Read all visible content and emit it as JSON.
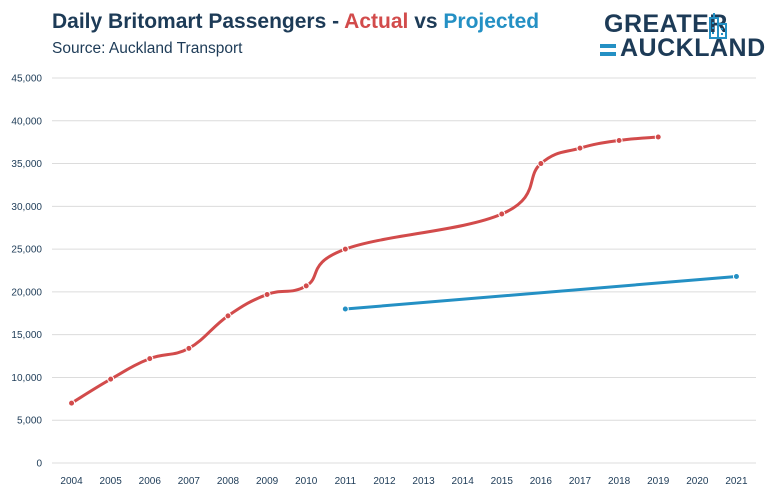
{
  "header": {
    "title_part1": "Daily Britomart Passengers - ",
    "title_actual": "Actual",
    "title_vs": " vs ",
    "title_projected": "Projected",
    "subtitle": "Source: Auckland Transport"
  },
  "logo": {
    "line1": "GREATER",
    "line2": "AUCKLAND",
    "icon": "city-building-icon",
    "color": "#1d3b57",
    "accent": "#2490c4"
  },
  "chart_data": {
    "type": "line",
    "title": "Daily Britomart Passengers - Actual vs Projected",
    "subtitle": "Source: Auckland Transport",
    "x": [
      2004,
      2005,
      2006,
      2007,
      2008,
      2009,
      2010,
      2011,
      2012,
      2013,
      2014,
      2015,
      2016,
      2017,
      2018,
      2019,
      2020,
      2021
    ],
    "x_tick_labels": [
      "2004",
      "2005",
      "2006",
      "2007",
      "2008",
      "2009",
      "2010",
      "2011",
      "2012",
      "2013",
      "2014",
      "2015",
      "2016",
      "2017",
      "2018",
      "2019",
      "2020",
      "2021"
    ],
    "ylim": [
      0,
      45000
    ],
    "y_ticks": [
      0,
      5000,
      10000,
      15000,
      20000,
      25000,
      30000,
      35000,
      40000,
      45000
    ],
    "y_tick_labels": [
      "0",
      "5,000",
      "10,000",
      "15,000",
      "20,000",
      "25,000",
      "30,000",
      "35,000",
      "40,000",
      "45,000"
    ],
    "grid": true,
    "xlabel": "",
    "ylabel": "",
    "series": [
      {
        "name": "Actual",
        "color": "#d24b4b",
        "points": [
          [
            2004,
            7000
          ],
          [
            2005,
            9800
          ],
          [
            2006,
            12200
          ],
          [
            2007,
            13400
          ],
          [
            2008,
            17200
          ],
          [
            2009,
            19700
          ],
          [
            2010,
            20700
          ],
          [
            2011,
            25000
          ],
          [
            2015,
            29100
          ],
          [
            2016,
            35000
          ],
          [
            2017,
            36800
          ],
          [
            2018,
            37700
          ],
          [
            2019,
            38100
          ]
        ]
      },
      {
        "name": "Projected",
        "color": "#2490c4",
        "points": [
          [
            2011,
            18000
          ],
          [
            2021,
            21800
          ]
        ]
      }
    ]
  }
}
